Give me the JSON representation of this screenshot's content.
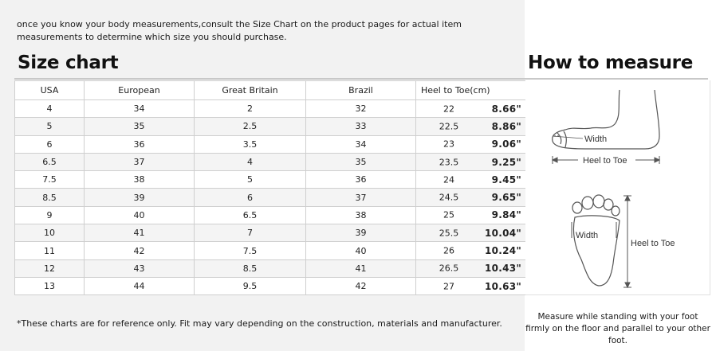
{
  "intro_text": "once you know your body measurements,consult the Size Chart on the product pages for actual item measurements to determine which size you should purchase.",
  "size_chart_title": "Size chart",
  "how_to_measure_title": "How to measure",
  "table": {
    "headers": [
      "USA",
      "European",
      "Great Britain",
      "Brazil",
      "Heel to Toe(cm)"
    ],
    "rows": [
      {
        "usa": "4",
        "eu": "34",
        "gb": "2",
        "br": "32",
        "cm": "22",
        "inch": "8.66\""
      },
      {
        "usa": "5",
        "eu": "35",
        "gb": "2.5",
        "br": "33",
        "cm": "22.5",
        "inch": "8.86\""
      },
      {
        "usa": "6",
        "eu": "36",
        "gb": "3.5",
        "br": "34",
        "cm": "23",
        "inch": "9.06\""
      },
      {
        "usa": "6.5",
        "eu": "37",
        "gb": "4",
        "br": "35",
        "cm": "23.5",
        "inch": "9.25\""
      },
      {
        "usa": "7.5",
        "eu": "38",
        "gb": "5",
        "br": "36",
        "cm": "24",
        "inch": "9.45\""
      },
      {
        "usa": "8.5",
        "eu": "39",
        "gb": "6",
        "br": "37",
        "cm": "24.5",
        "inch": "9.65\""
      },
      {
        "usa": "9",
        "eu": "40",
        "gb": "6.5",
        "br": "38",
        "cm": "25",
        "inch": "9.84\""
      },
      {
        "usa": "10",
        "eu": "41",
        "gb": "7",
        "br": "39",
        "cm": "25.5",
        "inch": "10.04\""
      },
      {
        "usa": "11",
        "eu": "42",
        "gb": "7.5",
        "br": "40",
        "cm": "26",
        "inch": "10.24\""
      },
      {
        "usa": "12",
        "eu": "43",
        "gb": "8.5",
        "br": "41",
        "cm": "26.5",
        "inch": "10.43\""
      },
      {
        "usa": "13",
        "eu": "44",
        "gb": "9.5",
        "br": "42",
        "cm": "27",
        "inch": "10.63\""
      }
    ]
  },
  "illustration": {
    "side_width_label": "Width",
    "side_length_label": "Heel to Toe",
    "sole_width_label": "Width",
    "sole_length_label": "Heel to Toe"
  },
  "footnote": "*These charts are for reference only. Fit may vary depending on the construction, materials and manufacturer.",
  "measure_note": "Measure while standing with your foot firmly on the floor and parallel to your other foot."
}
